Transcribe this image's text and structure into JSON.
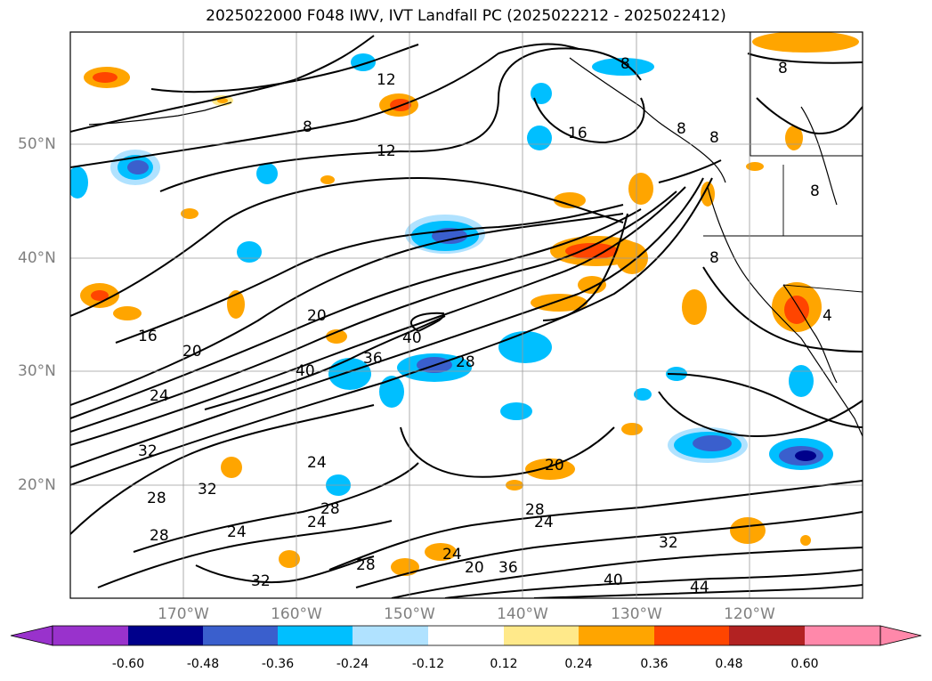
{
  "title": "2025022000 F048 IWV, IVT Landfall PC (2025022212 - 2025022412)",
  "lat_labels": [
    "50°N",
    "40°N",
    "30°N",
    "20°N"
  ],
  "lon_labels": [
    "170°W",
    "160°W",
    "150°W",
    "140°W",
    "130°W",
    "120°W"
  ],
  "colorbar": {
    "ticks": [
      "-0.60",
      "-0.48",
      "-0.36",
      "-0.24",
      "-0.12",
      "0.12",
      "0.24",
      "0.36",
      "0.48",
      "0.60"
    ],
    "colors": [
      "#9932cc",
      "#00008b",
      "#3a5fcd",
      "#00bfff",
      "#b0e2ff",
      "#ffffff",
      "#ffe98a",
      "#ffa500",
      "#ff4500",
      "#b22222",
      "#ff88aa"
    ]
  },
  "contour_labels": [
    "12",
    "8",
    "12",
    "16",
    "8",
    "8",
    "8",
    "8",
    "8",
    "16",
    "20",
    "20",
    "40",
    "36",
    "40",
    "28",
    "24",
    "32",
    "28",
    "32",
    "24",
    "28",
    "24",
    "28",
    "24",
    "28",
    "24",
    "20",
    "32",
    "36",
    "40",
    "44",
    "32",
    "8",
    "4"
  ]
}
